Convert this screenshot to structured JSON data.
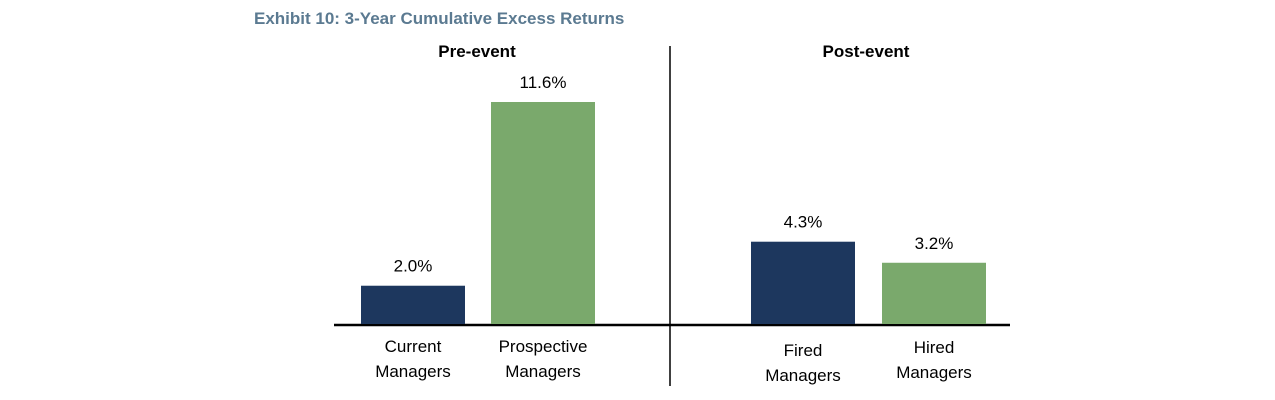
{
  "title": "Exhibit 10: 3-Year Cumulative Excess Returns",
  "colors": {
    "current": "#1d375e",
    "prospective": "#7aa96c",
    "title": "#5b7a91"
  },
  "chart_data": {
    "type": "bar",
    "title": "Exhibit 10: 3-Year Cumulative Excess Returns",
    "panels": [
      {
        "title": "Pre-event",
        "bars": [
          {
            "label_lines": [
              "Current",
              "Managers"
            ],
            "value": 2.0,
            "value_label": "2.0%",
            "color": "#1d375e"
          },
          {
            "label_lines": [
              "Prospective",
              "Managers"
            ],
            "value": 11.6,
            "value_label": "11.6%",
            "color": "#7aa96c"
          }
        ]
      },
      {
        "title": "Post-event",
        "bars": [
          {
            "label_lines": [
              "Fired",
              "Managers"
            ],
            "value": 4.3,
            "value_label": "4.3%",
            "color": "#1d375e"
          },
          {
            "label_lines": [
              "Hired",
              "Managers"
            ],
            "value": 3.2,
            "value_label": "3.2%",
            "color": "#7aa96c"
          }
        ]
      }
    ],
    "grid": false
  }
}
